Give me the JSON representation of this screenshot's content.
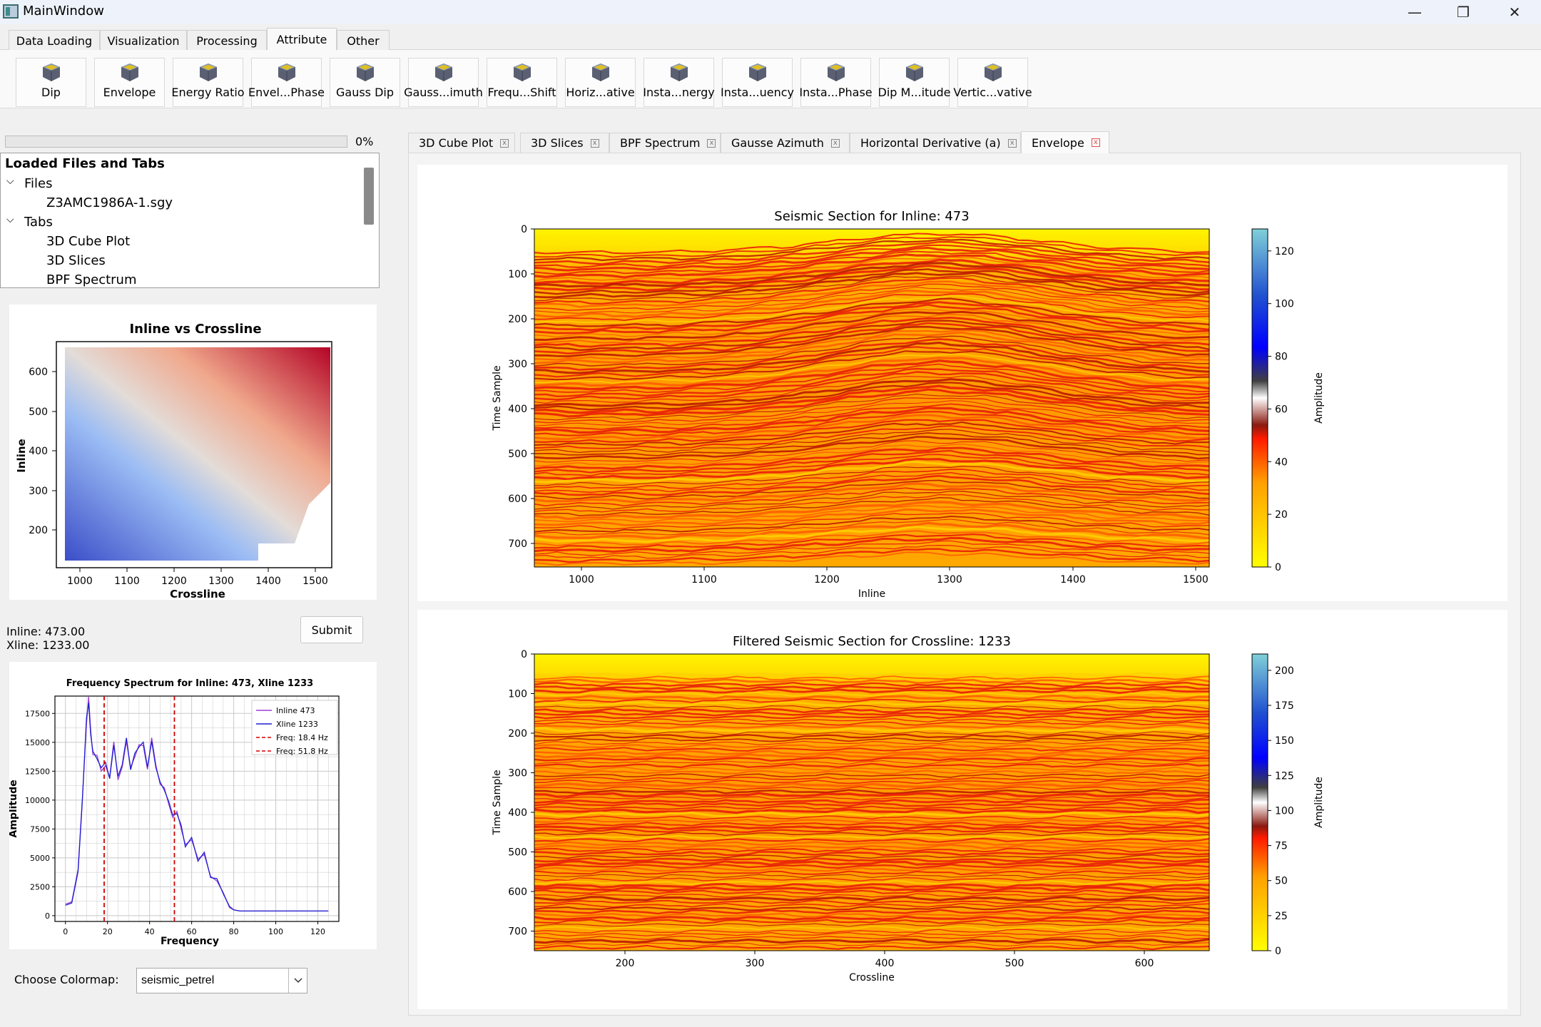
{
  "window": {
    "title": "MainWindow",
    "minimize": "—",
    "restore": "❐",
    "close": "✕"
  },
  "ribbon_tabs": [
    "Data Loading",
    "Visualization",
    "Processing",
    "Attribute",
    "Other"
  ],
  "tools": [
    "Dip",
    "Envelope",
    "Energy Ratio",
    "Envel...Phase",
    "Gauss Dip",
    "Gauss...imuth",
    "Frequ...Shift",
    "Horiz...ative",
    "Insta...nergy",
    "Insta...uency",
    "Insta...Phase",
    "Dip M...itude",
    "Vertic...vative"
  ],
  "progress": {
    "value": 0,
    "label": "0%"
  },
  "tree": {
    "header": "Loaded Files and Tabs",
    "files_label": "Files",
    "files": [
      "Z3AMC1986A-1.sgy"
    ],
    "tabs_label": "Tabs",
    "tabs": [
      "3D Cube Plot",
      "3D Slices",
      "BPF Spectrum"
    ]
  },
  "inline_xline_chart": {
    "title": "Inline vs Crossline",
    "xlabel": "Crossline",
    "ylabel": "Inline",
    "xticks": [
      "1000",
      "1100",
      "1200",
      "1300",
      "1400",
      "1500"
    ],
    "yticks": [
      "200",
      "300",
      "400",
      "500",
      "600"
    ]
  },
  "selection": {
    "inline": "Inline: 473.00",
    "xline": "Xline: 1233.00",
    "submit": "Submit"
  },
  "chart_data": [
    {
      "type": "line",
      "title": "Frequency Spectrum for Inline: 473, Xline 1233",
      "xlabel": "Frequency",
      "ylabel": "Amplitude",
      "xlim": [
        -5,
        130
      ],
      "ylim": [
        -500,
        19000
      ],
      "xticks": [
        "0",
        "20",
        "40",
        "60",
        "80",
        "100",
        "120"
      ],
      "yticks": [
        "0",
        "2500",
        "5000",
        "7500",
        "10000",
        "12500",
        "15000",
        "17500"
      ],
      "x": [
        0,
        3,
        6,
        8,
        10,
        11,
        12,
        13,
        15,
        17,
        19,
        21,
        23,
        25,
        27,
        29,
        31,
        33,
        35,
        37,
        39,
        41,
        43,
        45,
        47,
        49,
        51,
        53,
        55,
        57,
        60,
        63,
        66,
        69,
        72,
        75,
        78,
        80,
        83,
        90,
        100,
        110,
        120,
        125
      ],
      "series": [
        {
          "name": "Inline 473",
          "color": "#9b3fd6",
          "values": [
            1000,
            1200,
            4000,
            10000,
            16000,
            18500,
            16200,
            14500,
            13800,
            12000,
            13500,
            12000,
            14500,
            12200,
            13000,
            14500,
            13200,
            14000,
            14200,
            15000,
            13000,
            14800,
            13200,
            11800,
            10500,
            9800,
            9000,
            8500,
            7500,
            6700,
            6000,
            5500,
            4700,
            4000,
            3000,
            2000,
            700,
            500,
            400,
            400,
            400,
            400,
            400,
            400
          ]
        },
        {
          "name": "Xline 1233",
          "color": "#1f1fd0",
          "values": [
            900,
            1100,
            3800,
            9800,
            16500,
            18000,
            15800,
            14800,
            13500,
            12300,
            13800,
            11900,
            14200,
            12500,
            13200,
            14800,
            13000,
            14300,
            14000,
            15300,
            13200,
            14500,
            13000,
            12000,
            10300,
            10000,
            9200,
            8300,
            7800,
            6500,
            6200,
            5300,
            4900,
            3900,
            3200,
            1900,
            800,
            500,
            400,
            400,
            400,
            400,
            400,
            400
          ]
        }
      ],
      "vlines": [
        {
          "name": "Freq: 18.4 Hz",
          "x": 18.4,
          "color": "#d00000"
        },
        {
          "name": "Freq: 51.8 Hz",
          "x": 51.8,
          "color": "#d00000"
        }
      ]
    }
  ],
  "colormap": {
    "label": "Choose Colormap:",
    "value": "seismic_petrel"
  },
  "plot_tabs": [
    "3D Cube Plot",
    "3D Slices",
    "BPF Spectrum",
    "Gausse Azimuth",
    "Horizontal Derivative (a)",
    "Envelope"
  ],
  "plot_tab_close": "x",
  "section_top": {
    "title": "Seismic Section for Inline: 473",
    "xlabel": "Inline",
    "ylabel": "Time Sample",
    "xticks": [
      "1000",
      "1100",
      "1200",
      "1300",
      "1400",
      "1500"
    ],
    "yticks": [
      "0",
      "100",
      "200",
      "300",
      "400",
      "500",
      "600",
      "700"
    ],
    "colorbar_label": "Amplitude",
    "colorbar_ticks": [
      "0",
      "20",
      "40",
      "60",
      "80",
      "100",
      "120"
    ]
  },
  "section_bottom": {
    "title": "Filtered Seismic Section for Crossline: 1233",
    "xlabel": "Crossline",
    "ylabel": "Time Sample",
    "xticks": [
      "200",
      "300",
      "400",
      "500",
      "600"
    ],
    "yticks": [
      "0",
      "100",
      "200",
      "300",
      "400",
      "500",
      "600",
      "700"
    ],
    "colorbar_label": "Amplitude",
    "colorbar_ticks": [
      "0",
      "25",
      "50",
      "75",
      "100",
      "125",
      "150",
      "175",
      "200"
    ]
  },
  "colors": {
    "seis_yellow": "#ffef00",
    "seis_orange": "#ff8a00",
    "seis_red": "#e02010",
    "accent_red": "#e05050"
  }
}
